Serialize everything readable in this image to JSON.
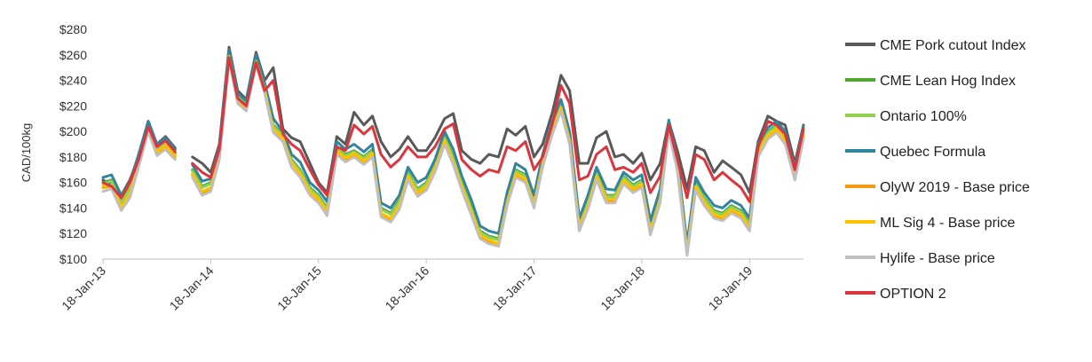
{
  "chart_data": {
    "type": "line",
    "title": "",
    "xlabel": "",
    "ylabel": "CAD/100kg",
    "ylim": [
      100,
      280
    ],
    "yticks": [
      100,
      120,
      140,
      160,
      180,
      200,
      220,
      240,
      260,
      280
    ],
    "ytick_labels": [
      "$100",
      "$120",
      "$140",
      "$160",
      "$180",
      "$200",
      "$220",
      "$240",
      "$260",
      "$280"
    ],
    "xlim": [
      2013.0,
      2019.5
    ],
    "xtick_labels": [
      "18-Jan-13",
      "18-Jan-14",
      "18-Jan-15",
      "18-Jan-16",
      "18-Jan-17",
      "18-Jan-18",
      "18-Jan-19"
    ],
    "grid": "none",
    "legend_position": "right",
    "x": [
      2013.0,
      2013.08,
      2013.17,
      2013.25,
      2013.33,
      2013.42,
      2013.5,
      2013.58,
      2013.67,
      2013.75,
      2013.83,
      2013.92,
      2014.0,
      2014.08,
      2014.17,
      2014.25,
      2014.33,
      2014.42,
      2014.5,
      2014.58,
      2014.67,
      2014.75,
      2014.83,
      2014.92,
      2015.0,
      2015.08,
      2015.17,
      2015.25,
      2015.33,
      2015.42,
      2015.5,
      2015.58,
      2015.67,
      2015.75,
      2015.83,
      2015.92,
      2016.0,
      2016.08,
      2016.17,
      2016.25,
      2016.33,
      2016.42,
      2016.5,
      2016.58,
      2016.67,
      2016.75,
      2016.83,
      2016.92,
      2017.0,
      2017.08,
      2017.17,
      2017.25,
      2017.33,
      2017.42,
      2017.5,
      2017.58,
      2017.67,
      2017.75,
      2017.83,
      2017.92,
      2018.0,
      2018.08,
      2018.17,
      2018.25,
      2018.33,
      2018.42,
      2018.5,
      2018.58,
      2018.67,
      2018.75,
      2018.83,
      2018.92,
      2019.0,
      2019.08,
      2019.17,
      2019.25,
      2019.33,
      2019.42,
      2019.5
    ],
    "series": [
      {
        "name": "CME Pork cutout Index",
        "color": "#595959",
        "values": [
          162,
          158,
          150,
          162,
          180,
          208,
          190,
          196,
          187,
          null,
          180,
          175,
          168,
          190,
          266,
          232,
          225,
          262,
          240,
          250,
          202,
          195,
          192,
          175,
          160,
          152,
          196,
          190,
          215,
          205,
          212,
          192,
          180,
          186,
          196,
          185,
          185,
          195,
          210,
          214,
          185,
          178,
          175,
          182,
          180,
          202,
          197,
          204,
          180,
          190,
          215,
          244,
          232,
          175,
          175,
          195,
          200,
          180,
          182,
          175,
          183,
          162,
          175,
          208,
          185,
          155,
          188,
          185,
          168,
          177,
          172,
          166,
          152,
          192,
          212,
          208,
          205,
          175,
          205
        ]
      },
      {
        "name": "CME Lean Hog Index",
        "color": "#4ea72e",
        "values": [
          160,
          162,
          145,
          156,
          178,
          206,
          187,
          192,
          183,
          null,
          170,
          157,
          160,
          185,
          262,
          228,
          222,
          258,
          236,
          205,
          198,
          178,
          170,
          156,
          150,
          140,
          188,
          182,
          185,
          180,
          186,
          140,
          136,
          146,
          168,
          155,
          160,
          174,
          196,
          180,
          160,
          140,
          122,
          118,
          116,
          148,
          170,
          166,
          146,
          178,
          205,
          222,
          196,
          128,
          145,
          168,
          150,
          150,
          165,
          158,
          162,
          125,
          150,
          206,
          175,
          108,
          160,
          148,
          138,
          136,
          142,
          138,
          128,
          186,
          200,
          205,
          196,
          168,
          200
        ]
      },
      {
        "name": "Ontario 100%",
        "color": "#92d050",
        "values": [
          159,
          161,
          144,
          155,
          177,
          205,
          186,
          191,
          182,
          null,
          169,
          156,
          159,
          184,
          261,
          227,
          221,
          257,
          235,
          204,
          197,
          177,
          169,
          155,
          149,
          139,
          187,
          181,
          184,
          179,
          185,
          139,
          135,
          145,
          167,
          154,
          159,
          173,
          195,
          179,
          159,
          139,
          121,
          117,
          115,
          147,
          169,
          165,
          145,
          177,
          204,
          221,
          195,
          127,
          144,
          167,
          149,
          149,
          164,
          157,
          161,
          124,
          149,
          205,
          174,
          107,
          159,
          147,
          137,
          135,
          141,
          137,
          127,
          185,
          199,
          204,
          195,
          167,
          199
        ]
      },
      {
        "name": "Quebec Formula",
        "color": "#31859c",
        "values": [
          164,
          166,
          150,
          160,
          182,
          208,
          190,
          195,
          186,
          null,
          174,
          161,
          163,
          188,
          264,
          230,
          224,
          260,
          238,
          210,
          200,
          182,
          176,
          160,
          154,
          145,
          192,
          186,
          190,
          184,
          190,
          144,
          140,
          150,
          172,
          160,
          164,
          178,
          200,
          186,
          165,
          146,
          126,
          122,
          120,
          152,
          175,
          170,
          150,
          182,
          208,
          225,
          200,
          132,
          150,
          172,
          155,
          154,
          168,
          162,
          166,
          130,
          155,
          209,
          178,
          112,
          164,
          152,
          142,
          140,
          146,
          142,
          132,
          190,
          203,
          208,
          200,
          172,
          204
        ]
      },
      {
        "name": "OlyW 2019 - Base price",
        "color": "#f39c12",
        "values": [
          156,
          157,
          140,
          150,
          174,
          202,
          183,
          188,
          180,
          null,
          166,
          152,
          155,
          180,
          258,
          224,
          218,
          254,
          232,
          201,
          194,
          174,
          166,
          152,
          146,
          136,
          184,
          178,
          182,
          176,
          182,
          134,
          130,
          140,
          163,
          150,
          155,
          170,
          192,
          176,
          156,
          136,
          117,
          113,
          110,
          143,
          166,
          162,
          141,
          174,
          200,
          218,
          192,
          123,
          140,
          164,
          146,
          145,
          160,
          154,
          158,
          120,
          146,
          202,
          170,
          104,
          156,
          144,
          134,
          132,
          138,
          134,
          123,
          182,
          196,
          201,
          192,
          164,
          196
        ]
      },
      {
        "name": "ML Sig 4 - Base price",
        "color": "#ffc000",
        "values": [
          157,
          158,
          141,
          151,
          175,
          203,
          184,
          189,
          181,
          null,
          167,
          153,
          156,
          181,
          259,
          225,
          219,
          255,
          233,
          202,
          195,
          175,
          167,
          153,
          147,
          137,
          185,
          179,
          183,
          177,
          183,
          136,
          132,
          142,
          165,
          152,
          157,
          171,
          193,
          177,
          157,
          137,
          119,
          115,
          112,
          145,
          167,
          163,
          143,
          175,
          201,
          219,
          193,
          125,
          142,
          165,
          147,
          147,
          162,
          155,
          159,
          122,
          147,
          203,
          172,
          106,
          157,
          145,
          135,
          133,
          139,
          135,
          125,
          183,
          197,
          202,
          193,
          165,
          197
        ]
      },
      {
        "name": "Hylife  - Base price",
        "color": "#bfbfbf",
        "values": [
          153,
          155,
          138,
          148,
          172,
          200,
          181,
          186,
          178,
          null,
          164,
          150,
          153,
          178,
          256,
          222,
          216,
          252,
          230,
          199,
          192,
          172,
          164,
          150,
          144,
          134,
          182,
          176,
          180,
          174,
          180,
          133,
          129,
          139,
          162,
          149,
          154,
          168,
          190,
          174,
          154,
          134,
          116,
          112,
          110,
          142,
          164,
          160,
          140,
          172,
          198,
          216,
          190,
          122,
          139,
          162,
          144,
          144,
          159,
          152,
          156,
          119,
          144,
          200,
          169,
          103,
          154,
          142,
          132,
          130,
          136,
          132,
          122,
          180,
          194,
          199,
          190,
          162,
          194
        ]
      },
      {
        "name": "OPTION 2",
        "color": "#d9363e",
        "values": [
          160,
          157,
          148,
          160,
          178,
          204,
          188,
          193,
          184,
          null,
          175,
          168,
          164,
          186,
          258,
          226,
          220,
          254,
          232,
          240,
          198,
          190,
          185,
          170,
          158,
          150,
          188,
          185,
          205,
          198,
          204,
          182,
          172,
          178,
          188,
          180,
          180,
          188,
          202,
          206,
          178,
          170,
          165,
          170,
          168,
          188,
          185,
          192,
          170,
          180,
          206,
          236,
          222,
          162,
          165,
          182,
          188,
          170,
          172,
          168,
          175,
          152,
          165,
          205,
          178,
          148,
          182,
          178,
          162,
          168,
          162,
          156,
          145,
          188,
          208,
          205,
          198,
          170,
          202
        ]
      }
    ]
  }
}
